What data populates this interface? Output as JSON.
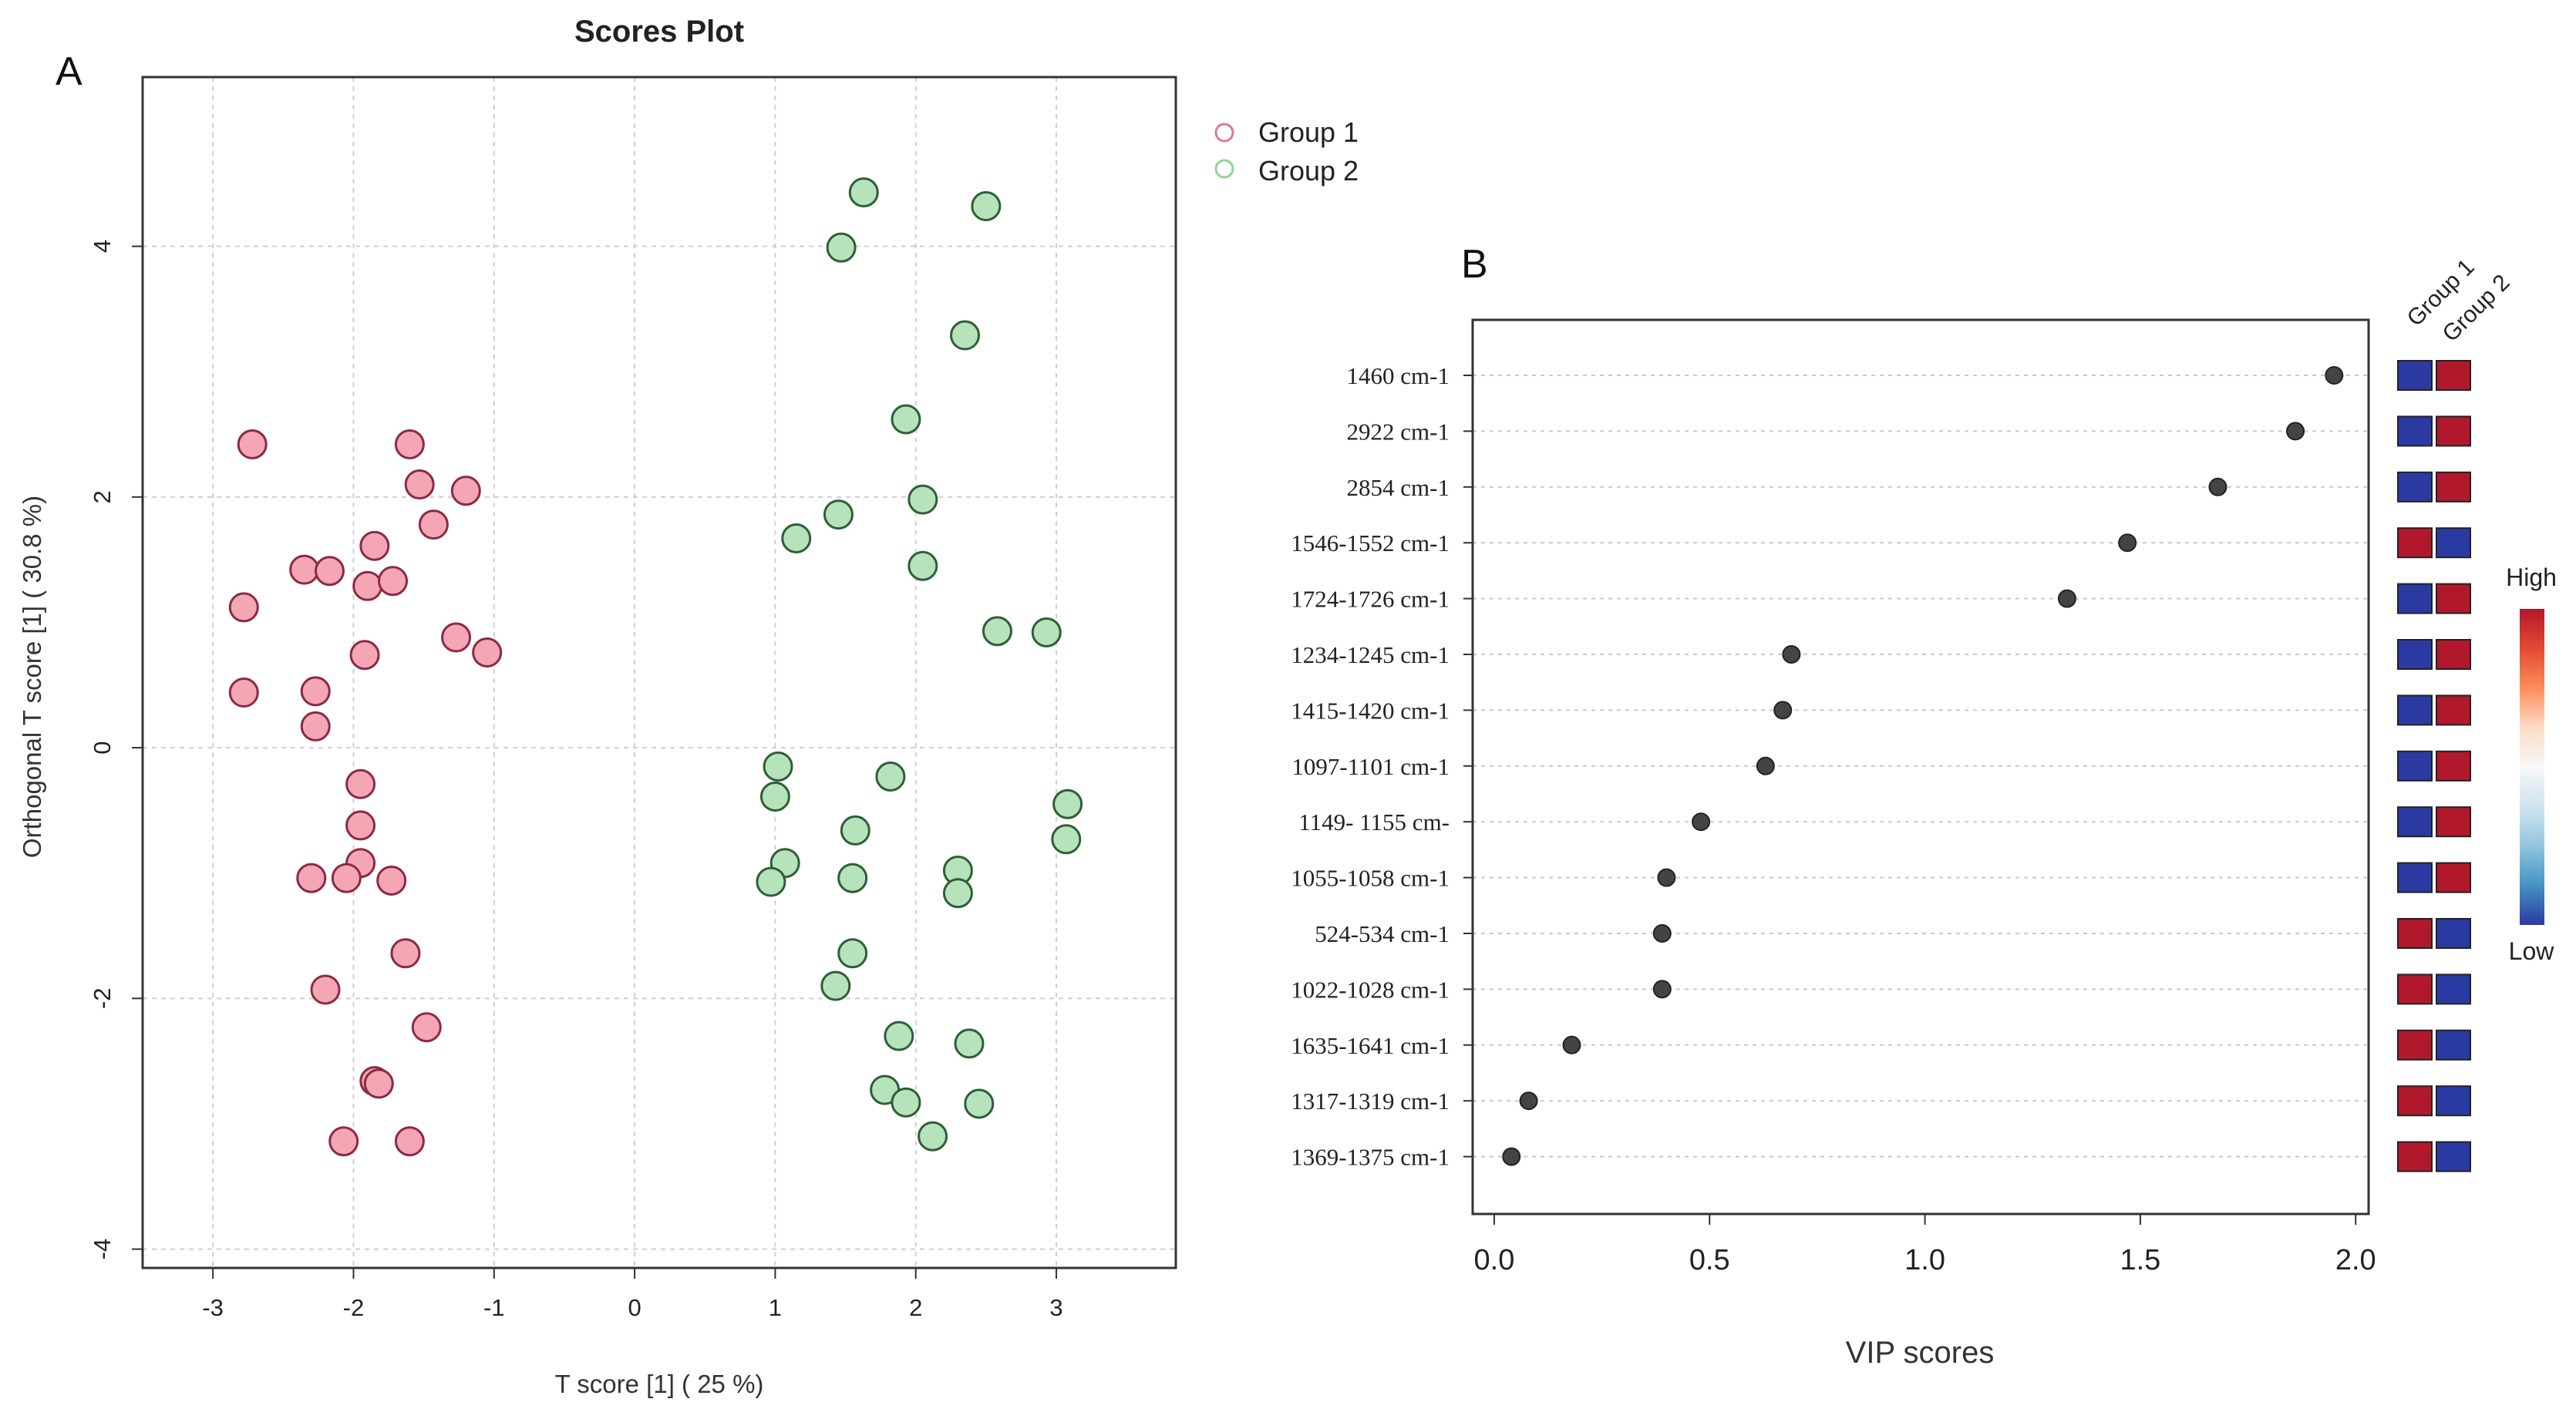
{
  "chart_data": [
    {
      "panel": "A",
      "type": "scatter",
      "title": "Scores Plot",
      "xlabel": "T score [1] ( 25 %)",
      "ylabel": "Orthogonal T score [1] ( 30.8 %)",
      "xlim": [
        -3.5,
        3.85
      ],
      "ylim": [
        -4.15,
        5.35
      ],
      "xticks": [
        -3,
        -2,
        -1,
        0,
        1,
        2,
        3
      ],
      "yticks": [
        -4,
        -2,
        0,
        2,
        4
      ],
      "grid": true,
      "legend_position": "top-right, outside plot",
      "series": [
        {
          "name": "Group 1",
          "color": "#f4a6b4",
          "edge": "#8a2a45",
          "x": [
            -2.72,
            -1.6,
            -1.53,
            -1.2,
            -1.43,
            -1.85,
            -2.35,
            -2.17,
            -1.9,
            -1.72,
            -2.78,
            -1.27,
            -1.05,
            -1.92,
            -2.78,
            -2.27,
            -2.27,
            -1.95,
            -1.95,
            -1.95,
            -2.3,
            -2.05,
            -1.73,
            -1.63,
            -2.2,
            -1.48,
            -1.85,
            -1.82,
            -2.07,
            -1.6
          ],
          "y": [
            2.42,
            2.42,
            2.1,
            2.05,
            1.78,
            1.61,
            1.42,
            1.41,
            1.29,
            1.33,
            1.12,
            0.88,
            0.76,
            0.74,
            0.44,
            0.45,
            0.17,
            -0.29,
            -0.62,
            -0.92,
            -1.04,
            -1.04,
            -1.06,
            -1.64,
            -1.93,
            -2.23,
            -2.66,
            -2.68,
            -3.14,
            -3.14
          ]
        },
        {
          "name": "Group 2",
          "color": "#b6e3bb",
          "edge": "#2e5e36",
          "x": [
            1.63,
            2.5,
            1.47,
            2.35,
            1.93,
            2.05,
            1.45,
            1.15,
            2.05,
            2.58,
            2.93,
            1.02,
            1.0,
            1.82,
            3.08,
            1.57,
            3.07,
            1.07,
            0.97,
            1.55,
            2.3,
            2.3,
            1.55,
            1.43,
            1.88,
            2.38,
            1.78,
            1.93,
            2.12,
            2.45
          ],
          "y": [
            4.43,
            4.32,
            3.99,
            3.29,
            2.62,
            1.98,
            1.86,
            1.67,
            1.45,
            0.93,
            0.92,
            -0.15,
            -0.39,
            -0.23,
            -0.45,
            -0.66,
            -0.73,
            -0.92,
            -1.07,
            -1.04,
            -0.98,
            -1.16,
            -1.64,
            -1.9,
            -2.3,
            -2.36,
            -2.73,
            -2.83,
            -3.1,
            -2.84
          ]
        }
      ]
    },
    {
      "panel": "B",
      "type": "dot",
      "xlabel": "VIP scores",
      "xlim": [
        -0.05,
        2.03
      ],
      "xticks": [
        "0.0",
        "0.5",
        "1.0",
        "1.5",
        "2.0"
      ],
      "xtick_values": [
        0,
        0.5,
        1,
        1.5,
        2
      ],
      "grid": true,
      "point_color": "#444444",
      "features": [
        {
          "label": "1460 cm-1",
          "vip": 1.95,
          "group1": "low",
          "group2": "high"
        },
        {
          "label": "2922 cm-1",
          "vip": 1.86,
          "group1": "low",
          "group2": "high"
        },
        {
          "label": "2854 cm-1",
          "vip": 1.68,
          "group1": "low",
          "group2": "high"
        },
        {
          "label": "1546-1552 cm-1",
          "vip": 1.47,
          "group1": "high",
          "group2": "low"
        },
        {
          "label": "1724-1726 cm-1",
          "vip": 1.33,
          "group1": "low",
          "group2": "high"
        },
        {
          "label": "1234-1245 cm-1",
          "vip": 0.69,
          "group1": "low",
          "group2": "high"
        },
        {
          "label": "1415-1420 cm-1",
          "vip": 0.67,
          "group1": "low",
          "group2": "high"
        },
        {
          "label": "1097-1101 cm-1",
          "vip": 0.63,
          "group1": "low",
          "group2": "high"
        },
        {
          "label": "1149- 1155 cm-",
          "vip": 0.48,
          "group1": "low",
          "group2": "high"
        },
        {
          "label": "1055-1058 cm-1",
          "vip": 0.4,
          "group1": "low",
          "group2": "high"
        },
        {
          "label": "524-534 cm-1",
          "vip": 0.39,
          "group1": "high",
          "group2": "low"
        },
        {
          "label": "1022-1028 cm-1",
          "vip": 0.39,
          "group1": "high",
          "group2": "low"
        },
        {
          "label": "1635-1641 cm-1",
          "vip": 0.18,
          "group1": "high",
          "group2": "low"
        },
        {
          "label": "1317-1319 cm-1",
          "vip": 0.08,
          "group1": "high",
          "group2": "low"
        },
        {
          "label": "1369-1375 cm-1",
          "vip": 0.04,
          "group1": "high",
          "group2": "low"
        }
      ],
      "heatmap_columns": [
        "Group 1",
        "Group 2"
      ],
      "heat_colors": {
        "high": "#b2182b",
        "low": "#2b3aa3"
      },
      "colorbar": {
        "high_label": "High",
        "low_label": "Low",
        "stops": [
          "#b2182b",
          "#e34a33",
          "#fc8d59",
          "#fddbc7",
          "#f7f7f7",
          "#d1e5f0",
          "#92c5de",
          "#4393c3",
          "#2b3aa3"
        ]
      }
    }
  ],
  "panel_labels": {
    "a": "A",
    "b": "B"
  }
}
